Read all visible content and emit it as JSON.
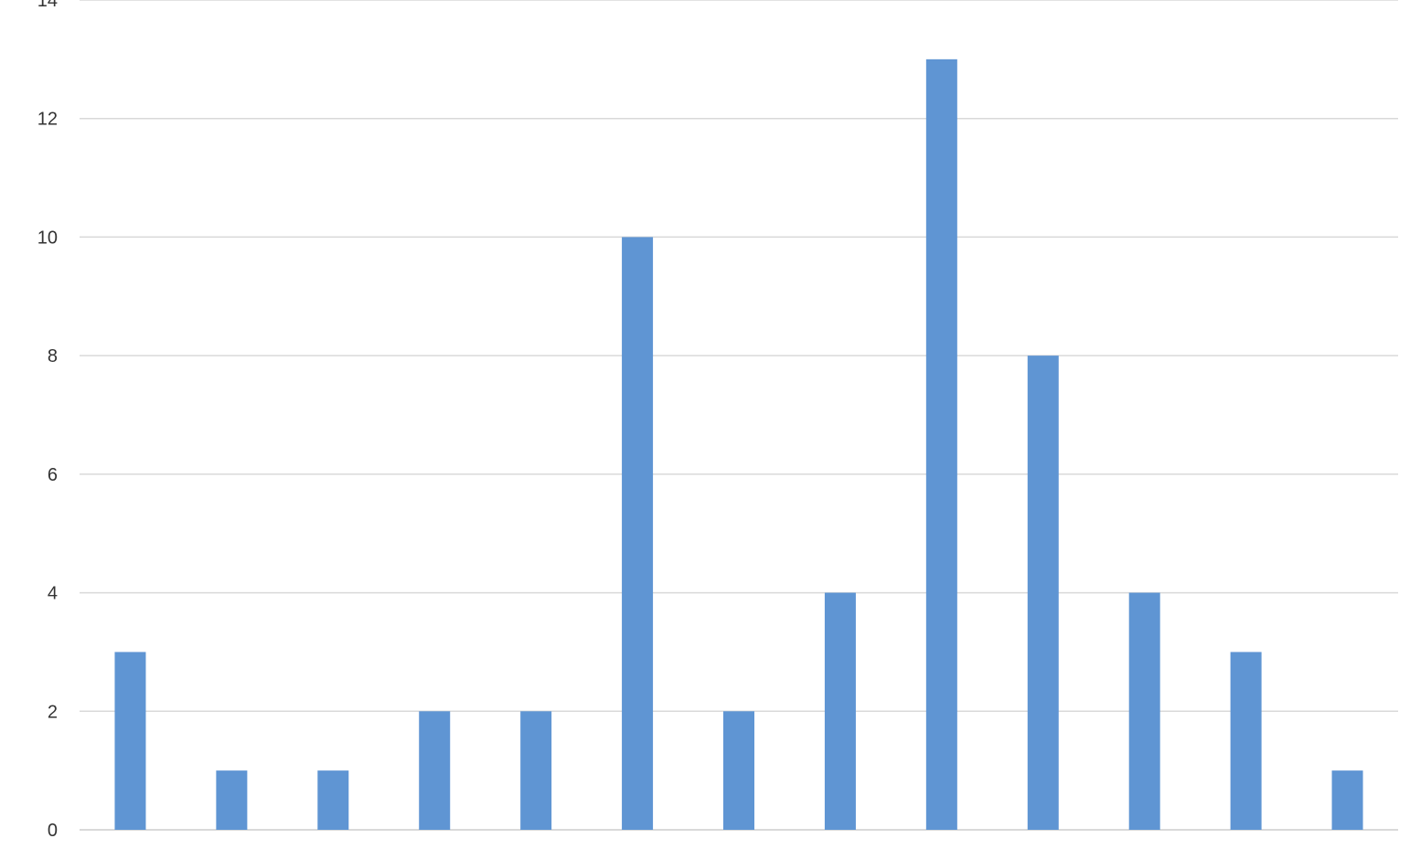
{
  "chart_data": {
    "type": "bar",
    "categories": [
      "",
      "",
      "",
      "",
      "",
      "",
      "",
      "",
      "",
      "",
      "",
      "",
      ""
    ],
    "values": [
      3,
      1,
      1,
      2,
      2,
      10,
      2,
      4,
      13,
      8,
      4,
      3,
      1
    ],
    "title": "",
    "xlabel": "",
    "ylabel": "",
    "ylim": [
      0,
      14
    ],
    "yticks": [
      0,
      2,
      4,
      6,
      8,
      10,
      12,
      14
    ],
    "grid": true,
    "bar_color": "#5f95d3",
    "grid_color": "#d9d9d9"
  }
}
